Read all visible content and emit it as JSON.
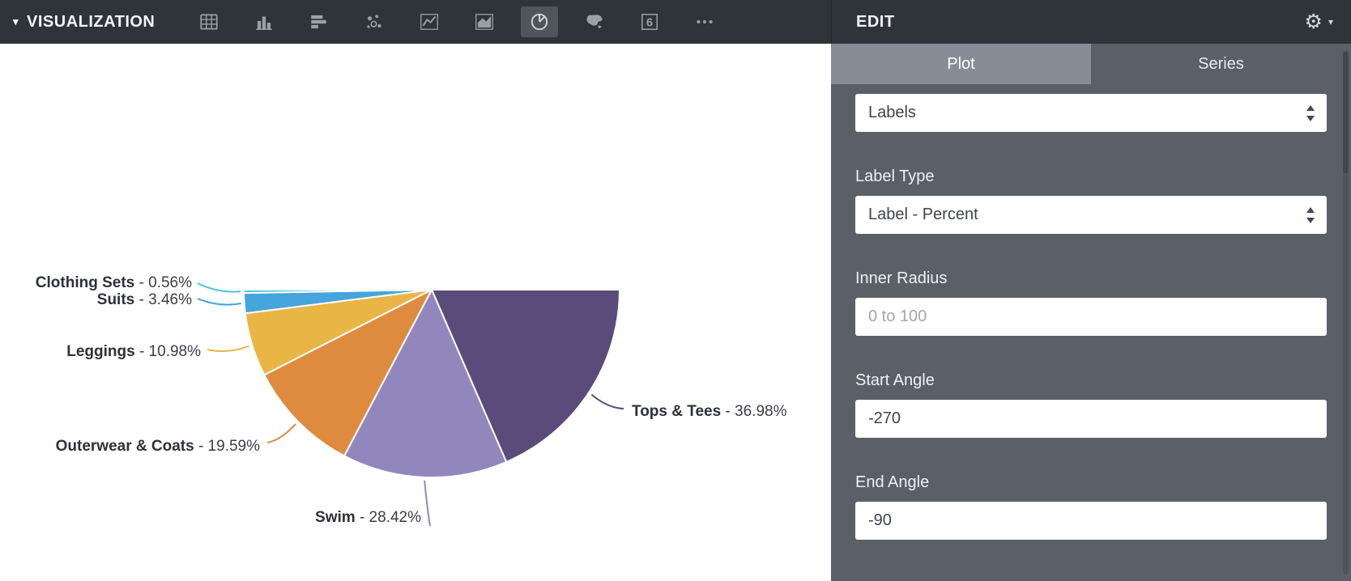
{
  "toolbar": {
    "title": "VISUALIZATION",
    "icons": [
      {
        "name": "data-table-icon",
        "selected": false
      },
      {
        "name": "bar-chart-icon",
        "selected": false
      },
      {
        "name": "horizontal-bar-chart-icon",
        "selected": false
      },
      {
        "name": "scatter-chart-icon",
        "selected": false
      },
      {
        "name": "line-chart-icon",
        "selected": false
      },
      {
        "name": "area-chart-icon",
        "selected": false
      },
      {
        "name": "pie-chart-icon",
        "selected": true
      },
      {
        "name": "map-chart-icon",
        "selected": false
      },
      {
        "name": "kpi-number-icon",
        "selected": false,
        "glyph": "6"
      },
      {
        "name": "more-icon",
        "selected": false
      }
    ]
  },
  "panel": {
    "title": "EDIT",
    "tabs": [
      {
        "label": "Plot",
        "active": true
      },
      {
        "label": "Series",
        "active": false
      }
    ],
    "labels_select": {
      "value": "Labels"
    },
    "label_type": {
      "label": "Label Type",
      "value": "Label - Percent"
    },
    "inner_radius": {
      "label": "Inner Radius",
      "placeholder": "0 to 100",
      "value": ""
    },
    "start_angle": {
      "label": "Start Angle",
      "value": "-270"
    },
    "end_angle": {
      "label": "End Angle",
      "value": "-90"
    }
  },
  "chart_data": {
    "type": "pie",
    "shape": "bottom-half-semicircle",
    "labels": [
      "Tops & Tees",
      "Swim",
      "Outerwear & Coats",
      "Leggings",
      "Suits",
      "Clothing Sets"
    ],
    "values": [
      36.98,
      28.42,
      19.59,
      10.98,
      3.46,
      0.56
    ],
    "colors": [
      "#5b4b7a",
      "#9187bd",
      "#de8b40",
      "#e9b646",
      "#45a5dc",
      "#4ec3dc"
    ],
    "label_type": "Label - Percent",
    "start_angle": -270,
    "end_angle": -90,
    "inner_radius": 0,
    "legend": "none",
    "title": ""
  }
}
